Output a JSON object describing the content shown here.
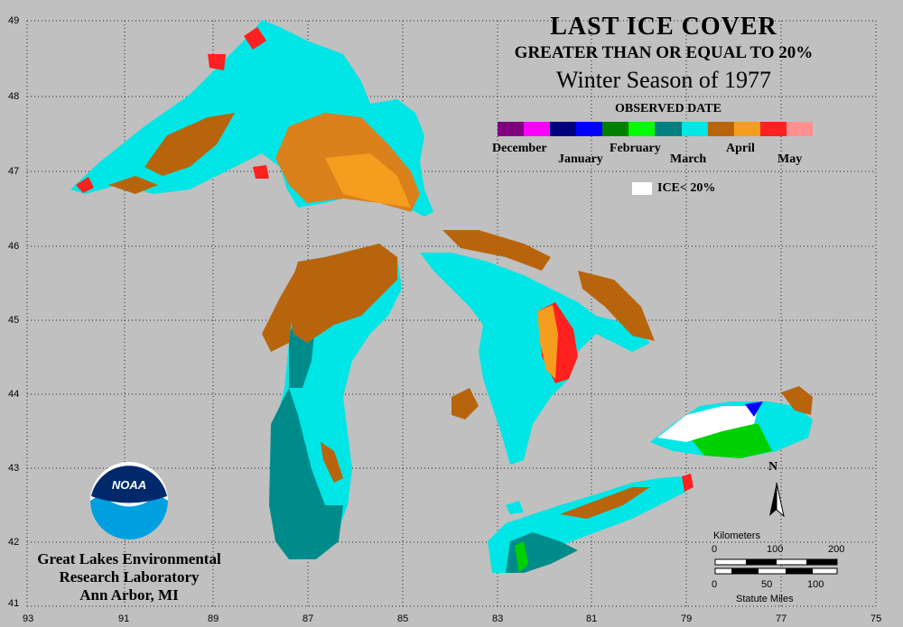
{
  "title": {
    "line1": "LAST ICE COVER",
    "line2": "GREATER THAN OR EQUAL TO 20%",
    "line3": "Winter Season of 1977"
  },
  "legend": {
    "title": "OBSERVED DATE",
    "colors": [
      "#800080",
      "#ff00ff",
      "#000080",
      "#0000ff",
      "#008000",
      "#00ff00",
      "#008080",
      "#00e5e5",
      "#b8640c",
      "#f59d1e",
      "#ff2020",
      "#ff9090"
    ],
    "months": [
      "December",
      "January",
      "February",
      "March",
      "April",
      "May"
    ],
    "ice_label": "ICE< 20%"
  },
  "axes": {
    "lat_labels": [
      "49",
      "48",
      "47",
      "46",
      "45",
      "44",
      "43",
      "42",
      "41"
    ],
    "lon_labels": [
      "93",
      "91",
      "89",
      "87",
      "85",
      "83",
      "81",
      "79",
      "77",
      "75"
    ]
  },
  "lab": {
    "line1": "Great Lakes Environmental",
    "line2": "Research Laboratory",
    "line3": "Ann Arbor, MI",
    "logo_text": "NOAA"
  },
  "scale": {
    "km_label": "Kilometers",
    "km_ticks": [
      "0",
      "100",
      "200"
    ],
    "mi_label": "Statute Miles",
    "mi_ticks": [
      "0",
      "50",
      "100"
    ]
  },
  "north": "N",
  "colors": {
    "background": "#c0c0c0",
    "march_cyan": "#00e5e5",
    "march_teal": "#008b8b",
    "april_brown": "#b8640c",
    "april_orange": "#f59d1e",
    "may_red": "#ff2020"
  }
}
